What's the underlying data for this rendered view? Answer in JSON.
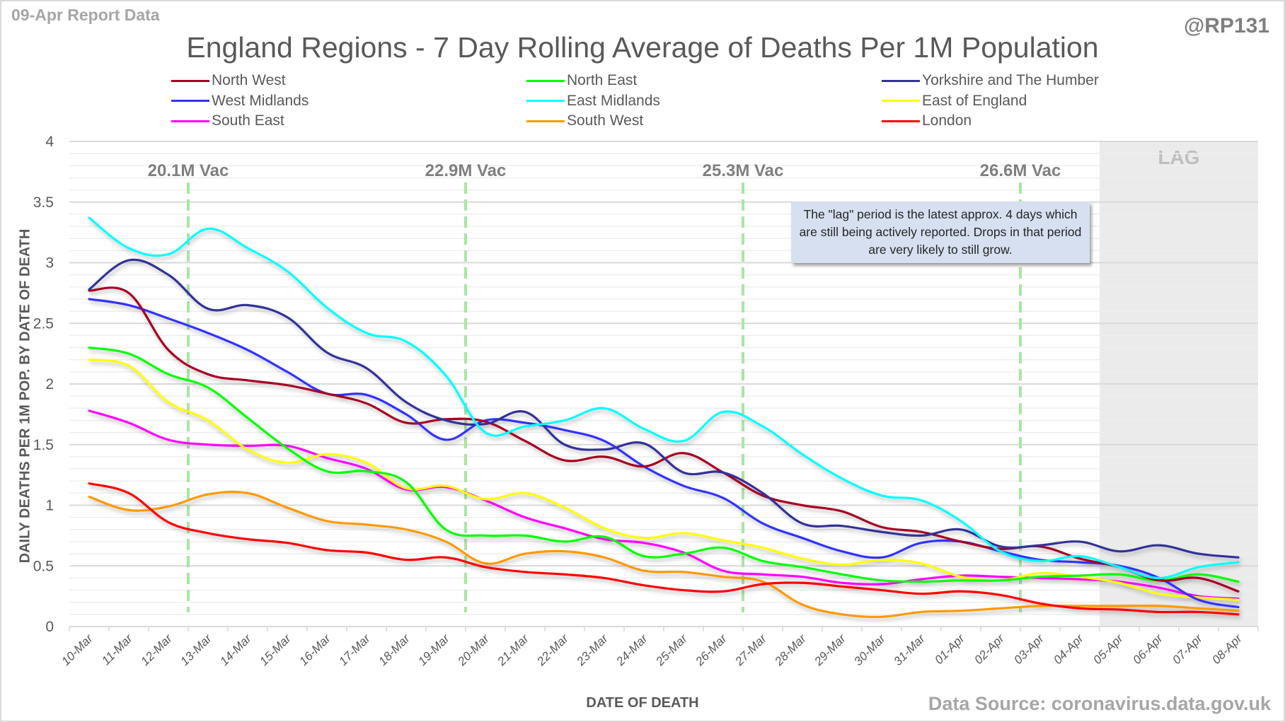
{
  "header": {
    "report_date": "09-Apr Report Data",
    "handle": "@RP131",
    "source": "Data Source: coronavirus.data.gov.uk"
  },
  "note": "The \"lag\" period is the latest approx. 4 days which are still being actively reported.  Drops in that period are very likely to still grow.",
  "chart_data": {
    "type": "line",
    "title": "England Regions - 7 Day Rolling Average of Deaths Per 1M Population",
    "xlabel": "DATE OF DEATH",
    "ylabel": "DAILY DEATHS PER 1M POP. BY DATE OF DEATH",
    "ylim": [
      0,
      4
    ],
    "yticks": [
      "0",
      "0.5",
      "1",
      "1.5",
      "2",
      "2.5",
      "3",
      "3.5",
      "4"
    ],
    "grid": "horizontal major and minor",
    "legend_position": "top",
    "categories": [
      "10-Mar",
      "11-Mar",
      "12-Mar",
      "13-Mar",
      "14-Mar",
      "15-Mar",
      "16-Mar",
      "17-Mar",
      "18-Mar",
      "19-Mar",
      "20-Mar",
      "21-Mar",
      "22-Mar",
      "23-Mar",
      "24-Mar",
      "25-Mar",
      "26-Mar",
      "27-Mar",
      "28-Mar",
      "29-Mar",
      "30-Mar",
      "31-Mar",
      "01-Apr",
      "02-Apr",
      "03-Apr",
      "04-Apr",
      "05-Apr",
      "06-Apr",
      "07-Apr",
      "08-Apr"
    ],
    "series": [
      {
        "name": "North West",
        "color": "#a50021",
        "values": [
          2.77,
          2.75,
          2.28,
          2.08,
          2.03,
          1.99,
          1.92,
          1.84,
          1.68,
          1.71,
          1.69,
          1.53,
          1.37,
          1.4,
          1.32,
          1.43,
          1.27,
          1.08,
          1.0,
          0.95,
          0.82,
          0.78,
          0.7,
          0.64,
          0.66,
          0.56,
          0.49,
          0.38,
          0.4,
          0.29
        ]
      },
      {
        "name": "North East",
        "color": "#00ff00",
        "values": [
          2.3,
          2.25,
          2.08,
          1.97,
          1.72,
          1.47,
          1.28,
          1.28,
          1.19,
          0.8,
          0.75,
          0.75,
          0.7,
          0.74,
          0.58,
          0.6,
          0.65,
          0.54,
          0.49,
          0.43,
          0.38,
          0.37,
          0.38,
          0.38,
          0.41,
          0.42,
          0.43,
          0.38,
          0.43,
          0.37
        ]
      },
      {
        "name": "Yorkshire and The Humber",
        "color": "#333399",
        "values": [
          2.78,
          3.02,
          2.9,
          2.62,
          2.65,
          2.55,
          2.26,
          2.13,
          1.85,
          1.7,
          1.67,
          1.77,
          1.5,
          1.46,
          1.51,
          1.27,
          1.27,
          1.1,
          0.85,
          0.83,
          0.78,
          0.75,
          0.8,
          0.66,
          0.67,
          0.7,
          0.62,
          0.67,
          0.6,
          0.57
        ]
      },
      {
        "name": "West Midlands",
        "color": "#3333ff",
        "values": [
          2.7,
          2.65,
          2.54,
          2.42,
          2.28,
          2.1,
          1.92,
          1.91,
          1.75,
          1.54,
          1.7,
          1.68,
          1.62,
          1.53,
          1.32,
          1.16,
          1.06,
          0.85,
          0.73,
          0.62,
          0.57,
          0.69,
          0.7,
          0.62,
          0.55,
          0.53,
          0.5,
          0.4,
          0.22,
          0.16
        ]
      },
      {
        "name": "East Midlands",
        "color": "#00ffff",
        "values": [
          3.37,
          3.12,
          3.07,
          3.28,
          3.12,
          2.93,
          2.63,
          2.42,
          2.35,
          2.07,
          1.6,
          1.65,
          1.7,
          1.8,
          1.63,
          1.53,
          1.77,
          1.65,
          1.42,
          1.22,
          1.08,
          1.04,
          0.87,
          0.62,
          0.54,
          0.58,
          0.49,
          0.4,
          0.49,
          0.53
        ]
      },
      {
        "name": "East of England",
        "color": "#ffff00",
        "values": [
          2.2,
          2.15,
          1.85,
          1.7,
          1.46,
          1.35,
          1.42,
          1.35,
          1.14,
          1.16,
          1.05,
          1.1,
          0.98,
          0.81,
          0.73,
          0.77,
          0.71,
          0.65,
          0.56,
          0.51,
          0.55,
          0.52,
          0.41,
          0.38,
          0.44,
          0.41,
          0.36,
          0.27,
          0.24,
          0.22
        ]
      },
      {
        "name": "South East",
        "color": "#ff00ff",
        "values": [
          1.78,
          1.68,
          1.54,
          1.5,
          1.49,
          1.49,
          1.39,
          1.3,
          1.13,
          1.15,
          1.04,
          0.9,
          0.81,
          0.72,
          0.69,
          0.61,
          0.46,
          0.43,
          0.41,
          0.36,
          0.35,
          0.39,
          0.42,
          0.41,
          0.4,
          0.39,
          0.37,
          0.32,
          0.25,
          0.23
        ]
      },
      {
        "name": "South West",
        "color": "#ff9900",
        "values": [
          1.07,
          0.96,
          0.99,
          1.09,
          1.1,
          0.98,
          0.87,
          0.84,
          0.8,
          0.7,
          0.52,
          0.6,
          0.62,
          0.57,
          0.46,
          0.45,
          0.41,
          0.37,
          0.18,
          0.1,
          0.08,
          0.12,
          0.13,
          0.15,
          0.17,
          0.17,
          0.17,
          0.17,
          0.15,
          0.13
        ]
      },
      {
        "name": "London",
        "color": "#ff0000",
        "values": [
          1.18,
          1.1,
          0.86,
          0.77,
          0.72,
          0.69,
          0.63,
          0.61,
          0.55,
          0.57,
          0.49,
          0.45,
          0.43,
          0.4,
          0.34,
          0.3,
          0.29,
          0.35,
          0.36,
          0.33,
          0.3,
          0.27,
          0.29,
          0.26,
          0.19,
          0.15,
          0.14,
          0.12,
          0.12,
          0.1
        ]
      }
    ],
    "annotations": {
      "vaccination_markers": [
        {
          "label": "20.1M Vac",
          "position_after": "12-Mar"
        },
        {
          "label": "22.9M Vac",
          "position_after": "19-Mar"
        },
        {
          "label": "25.3M Vac",
          "position_after": "26-Mar"
        },
        {
          "label": "26.6M Vac",
          "position_after": "02-Apr"
        }
      ],
      "lag_region": {
        "label": "LAG",
        "from": "05-Apr",
        "to": "08-Apr"
      }
    }
  }
}
